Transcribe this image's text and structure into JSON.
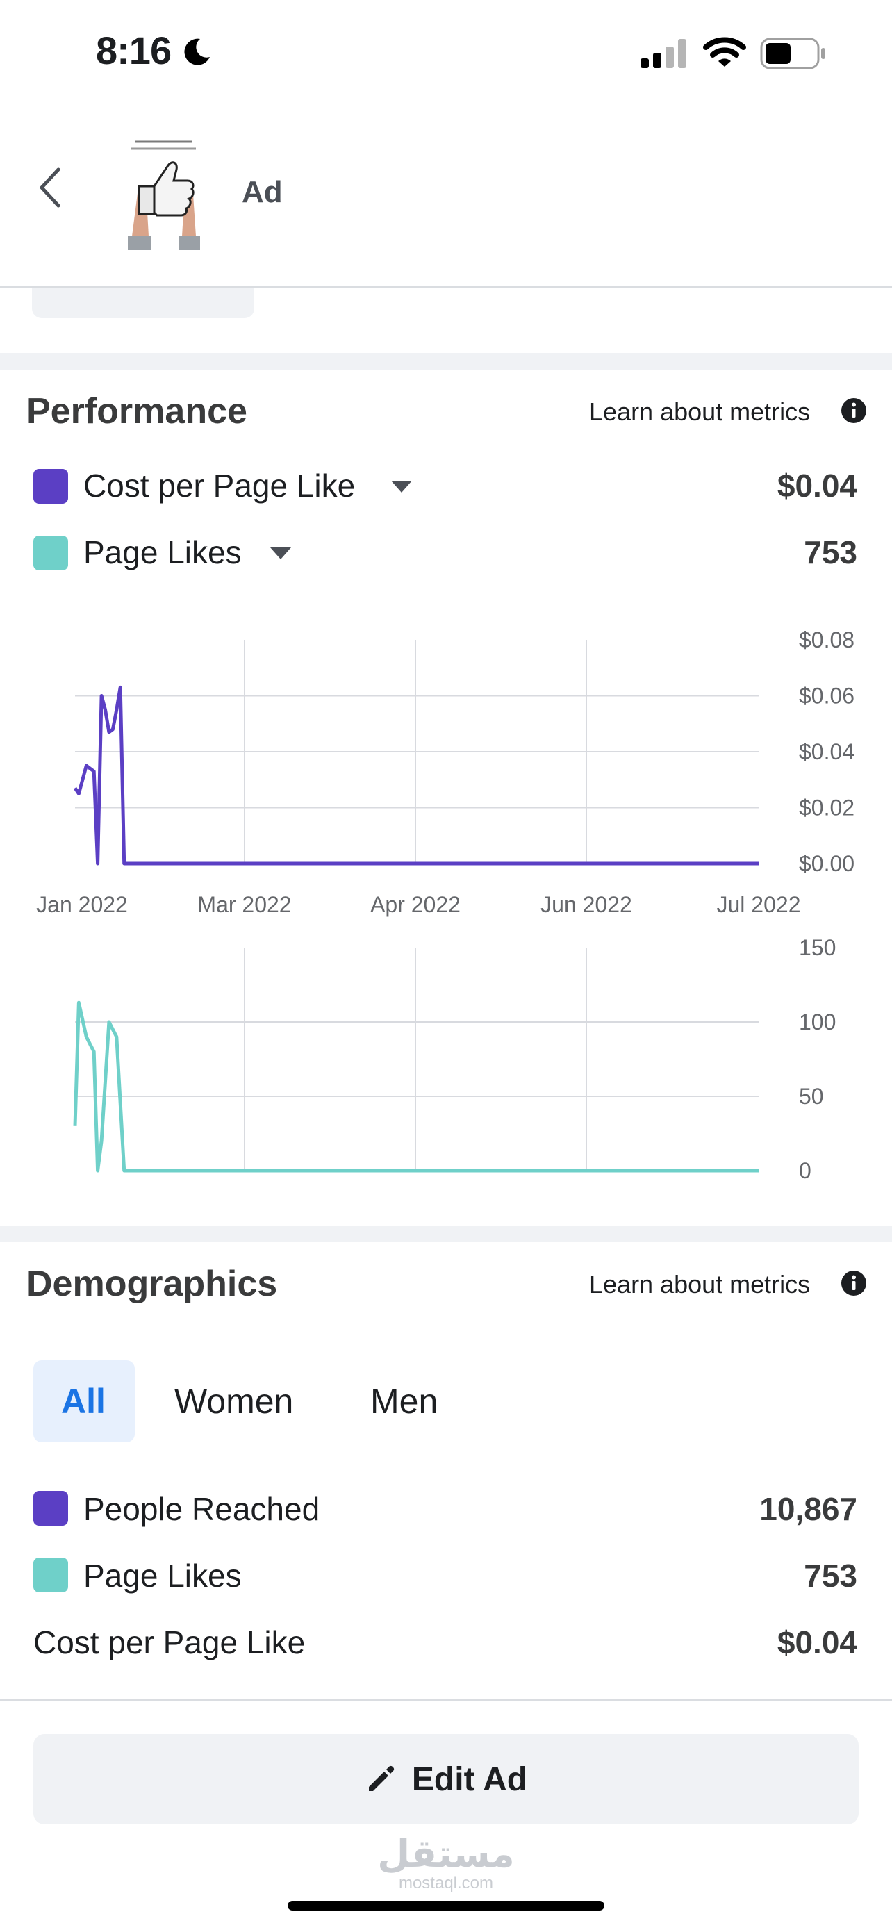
{
  "status_bar": {
    "time": "8:16"
  },
  "header": {
    "title": "Ad"
  },
  "performance": {
    "title": "Performance",
    "learn_link": "Learn about metrics",
    "metrics": [
      {
        "label": "Cost per Page Like",
        "value": "$0.04",
        "color": "#5b3fc4"
      },
      {
        "label": "Page Likes",
        "value": "753",
        "color": "#6fd0c9"
      }
    ]
  },
  "chart_data": [
    {
      "type": "line",
      "x_tick_labels": [
        "Jan 2022",
        "Mar 2022",
        "Apr 2022",
        "Jun 2022",
        "Jul 2022"
      ],
      "y_tick_labels": [
        "$0.08",
        "$0.06",
        "$0.04",
        "$0.02",
        "$0.00"
      ],
      "ylim": [
        0,
        0.08
      ],
      "grid": true,
      "color": "#5b3fc4",
      "series": [
        {
          "points": [
            [
              "2022-01-01",
              0.027
            ],
            [
              "2022-01-02",
              0.025
            ],
            [
              "2022-01-04",
              0.035
            ],
            [
              "2022-01-06",
              0.033
            ],
            [
              "2022-01-07",
              0.0
            ],
            [
              "2022-01-08",
              0.06
            ],
            [
              "2022-01-09",
              0.055
            ],
            [
              "2022-01-10",
              0.047
            ],
            [
              "2022-01-11",
              0.048
            ],
            [
              "2022-01-12",
              0.055
            ],
            [
              "2022-01-13",
              0.063
            ],
            [
              "2022-01-14",
              0.0
            ],
            [
              "2022-07-01",
              0.0
            ]
          ]
        }
      ]
    },
    {
      "type": "line",
      "y_tick_labels": [
        "150",
        "100",
        "50",
        "0"
      ],
      "ylim": [
        0,
        150
      ],
      "grid": true,
      "color": "#6fd0c9",
      "series": [
        {
          "points": [
            [
              "2022-01-01",
              30
            ],
            [
              "2022-01-02",
              113
            ],
            [
              "2022-01-04",
              90
            ],
            [
              "2022-01-06",
              80
            ],
            [
              "2022-01-07",
              0
            ],
            [
              "2022-01-08",
              20
            ],
            [
              "2022-01-10",
              100
            ],
            [
              "2022-01-12",
              90
            ],
            [
              "2022-01-14",
              0
            ],
            [
              "2022-07-01",
              0
            ]
          ]
        }
      ]
    }
  ],
  "demographics": {
    "title": "Demographics",
    "learn_link": "Learn about metrics",
    "tabs": [
      "All",
      "Women",
      "Men"
    ],
    "active_tab": "All",
    "metrics": [
      {
        "label": "People Reached",
        "value": "10,867",
        "color": "#5b3fc4"
      },
      {
        "label": "Page Likes",
        "value": "753",
        "color": "#6fd0c9"
      },
      {
        "label": "Cost per Page Like",
        "value": "$0.04"
      }
    ]
  },
  "actions": {
    "edit": "Edit Ad"
  },
  "watermark": {
    "arabic": "مستقل",
    "latin": "mostaql.com"
  }
}
